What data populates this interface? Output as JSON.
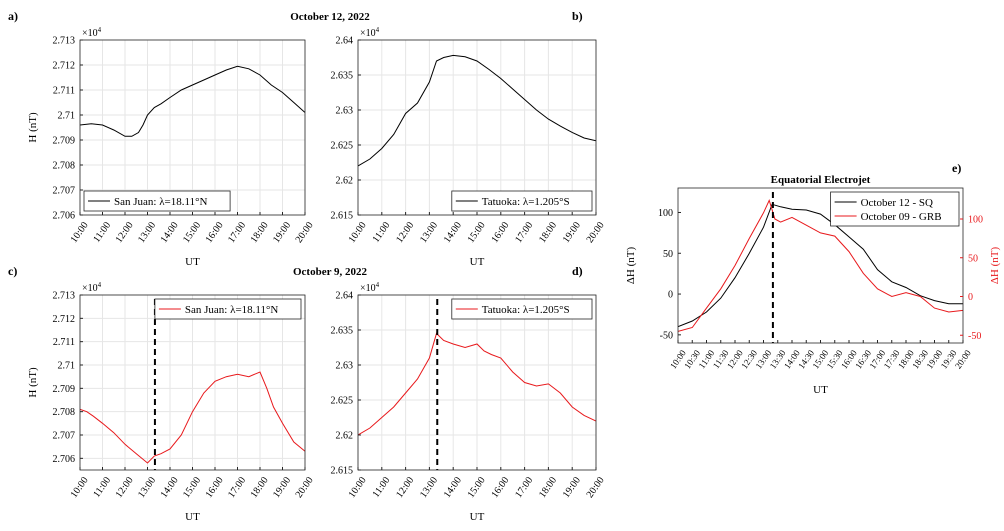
{
  "figure_titles": {
    "top": "October 12, 2022",
    "bottom": "October 9, 2022"
  },
  "colors": {
    "black": "#000000",
    "red": "#e8191c",
    "grid": "#e6e6e6",
    "axis": "#262626"
  },
  "chart_data": [
    {
      "id": "a",
      "panel_label": "a)",
      "type": "line",
      "ylabel": "H (nT)",
      "xlabel": "UT",
      "exponent": "×10",
      "exponent_power": "4",
      "x_ticks": [
        "10:00",
        "11:00",
        "12:00",
        "13:00",
        "14:00",
        "15:00",
        "16:00",
        "17:00",
        "18:00",
        "19:00",
        "20:00"
      ],
      "xlim": [
        10,
        20
      ],
      "ylim": [
        27060,
        27130
      ],
      "y_ticks": [
        27060,
        27070,
        27080,
        27090,
        27100,
        27110,
        27120,
        27130
      ],
      "y_tick_labels": [
        "2.706",
        "2.707",
        "2.708",
        "2.709",
        "2.71",
        "2.711",
        "2.712",
        "2.713"
      ],
      "grid": true,
      "legend_position": "bottom-left",
      "series": [
        {
          "name": "San Juan: λ=18.11°N",
          "color": "black",
          "x": [
            10,
            10.5,
            11,
            11.5,
            12,
            12.3,
            12.6,
            12.8,
            13,
            13.3,
            13.6,
            14,
            14.5,
            15,
            15.5,
            16,
            16.5,
            17,
            17.5,
            18,
            18.5,
            19,
            19.5,
            20
          ],
          "y": [
            27096,
            27096.5,
            27096,
            27094,
            27091.5,
            27091.5,
            27093,
            27096,
            27100,
            27103,
            27104.5,
            27107,
            27110,
            27112,
            27114,
            27116,
            27118,
            27119.5,
            27118.5,
            27116,
            27112,
            27109,
            27105,
            27101
          ]
        }
      ]
    },
    {
      "id": "b",
      "panel_label": "b)",
      "type": "line",
      "ylabel": "",
      "xlabel": "UT",
      "exponent": "×10",
      "exponent_power": "4",
      "x_ticks": [
        "10:00",
        "11:00",
        "12:00",
        "13:00",
        "14:00",
        "15:00",
        "16:00",
        "17:00",
        "18:00",
        "19:00",
        "20:00"
      ],
      "xlim": [
        10,
        20
      ],
      "ylim": [
        26150,
        26400
      ],
      "y_ticks": [
        26150,
        26200,
        26250,
        26300,
        26350,
        26400
      ],
      "y_tick_labels": [
        "2.615",
        "2.62",
        "2.625",
        "2.63",
        "2.635",
        "2.64"
      ],
      "grid": true,
      "legend_position": "bottom-right",
      "series": [
        {
          "name": "Tatuoka: λ=1.205°S",
          "color": "black",
          "x": [
            10,
            10.5,
            11,
            11.5,
            12,
            12.5,
            13,
            13.3,
            13.6,
            14,
            14.5,
            15,
            15.5,
            16,
            16.5,
            17,
            17.5,
            18,
            18.5,
            19,
            19.5,
            20
          ],
          "y": [
            26220,
            26230,
            26245,
            26265,
            26295,
            26310,
            26340,
            26370,
            26375,
            26378,
            26376,
            26370,
            26358,
            26345,
            26330,
            26315,
            26300,
            26287,
            26277,
            26268,
            26260,
            26256
          ]
        }
      ]
    },
    {
      "id": "c",
      "panel_label": "c)",
      "type": "line",
      "ylabel": "H (nT)",
      "xlabel": "UT",
      "exponent": "×10",
      "exponent_power": "4",
      "x_ticks": [
        "10:00",
        "11:00",
        "12:00",
        "13:00",
        "14:00",
        "15:00",
        "16:00",
        "17:00",
        "18:00",
        "19:00",
        "20:00"
      ],
      "xlim": [
        10,
        20
      ],
      "ylim": [
        27055,
        27130
      ],
      "y_ticks": [
        27060,
        27070,
        27080,
        27090,
        27100,
        27110,
        27120,
        27130
      ],
      "y_tick_labels": [
        "2.706",
        "2.707",
        "2.708",
        "2.709",
        "2.71",
        "2.711",
        "2.712",
        "2.713"
      ],
      "grid": true,
      "legend_position": "top-right",
      "marker_time": 13.33,
      "series": [
        {
          "name": "San Juan: λ=18.11°N",
          "color": "red",
          "x": [
            10,
            10.3,
            10.6,
            11,
            11.5,
            12,
            12.5,
            13,
            13.3,
            13.6,
            14,
            14.5,
            15,
            15.5,
            16,
            16.5,
            17,
            17.5,
            18,
            18.3,
            18.6,
            19,
            19.5,
            20
          ],
          "y": [
            27081,
            27080,
            27078,
            27075,
            27071,
            27066,
            27062,
            27058,
            27061,
            27062,
            27064,
            27070,
            27080,
            27088,
            27093,
            27095,
            27096,
            27095,
            27097,
            27090,
            27082,
            27075,
            27067,
            27063
          ]
        }
      ]
    },
    {
      "id": "d",
      "panel_label": "d)",
      "type": "line",
      "ylabel": "",
      "xlabel": "UT",
      "exponent": "×10",
      "exponent_power": "4",
      "x_ticks": [
        "10:00",
        "11:00",
        "12:00",
        "13:00",
        "14:00",
        "15:00",
        "16:00",
        "17:00",
        "18:00",
        "19:00",
        "20:00"
      ],
      "xlim": [
        10,
        20
      ],
      "ylim": [
        26150,
        26400
      ],
      "y_ticks": [
        26150,
        26200,
        26250,
        26300,
        26350,
        26400
      ],
      "y_tick_labels": [
        "2.615",
        "2.62",
        "2.625",
        "2.63",
        "2.635",
        "2.64"
      ],
      "grid": true,
      "legend_position": "top-right",
      "marker_time": 13.33,
      "series": [
        {
          "name": "Tatuoka: λ=1.205°S",
          "color": "red",
          "x": [
            10,
            10.5,
            11,
            11.5,
            12,
            12.5,
            13,
            13.3,
            13.6,
            14,
            14.5,
            15,
            15.3,
            15.6,
            16,
            16.5,
            17,
            17.5,
            18,
            18.5,
            19,
            19.5,
            20
          ],
          "y": [
            26200,
            26210,
            26225,
            26240,
            26260,
            26280,
            26310,
            26345,
            26335,
            26330,
            26325,
            26330,
            26320,
            26315,
            26310,
            26290,
            26275,
            26270,
            26273,
            26260,
            26240,
            26228,
            26220
          ]
        }
      ]
    },
    {
      "id": "e",
      "panel_label": "e)",
      "type": "line",
      "title": "Equatorial Electrojet",
      "ylabel": "ΔH (nT)",
      "ylabel_right": "ΔH (nT)",
      "xlabel": "UT",
      "x_ticks": [
        "10:00",
        "10:30",
        "11:00",
        "11:30",
        "12:00",
        "12:30",
        "13:00",
        "13:30",
        "14:00",
        "14:30",
        "15:00",
        "15:30",
        "16:00",
        "16:30",
        "17:00",
        "17:30",
        "18:00",
        "18:30",
        "19:00",
        "19:30",
        "20:00"
      ],
      "xlim": [
        10,
        20
      ],
      "ylim": [
        -60,
        130
      ],
      "y_ticks": [
        -50,
        0,
        50,
        100
      ],
      "y_tick_labels": [
        "-50",
        "0",
        "50",
        "100"
      ],
      "ylim_right": [
        -60,
        140
      ],
      "y_ticks_right": [
        -50,
        0,
        50,
        100
      ],
      "y_tick_labels_right": [
        "-50",
        "0",
        "50",
        "100"
      ],
      "grid": false,
      "legend_position": "top-right",
      "marker_time": 13.33,
      "series": [
        {
          "name": "October 12 - SQ",
          "color": "black",
          "axis": "left",
          "x": [
            10,
            10.5,
            11,
            11.5,
            12,
            12.5,
            13,
            13.3,
            13.6,
            14,
            14.5,
            15,
            15.5,
            16,
            16.5,
            17,
            17.5,
            18,
            18.5,
            19,
            19.5,
            20
          ],
          "y": [
            -40,
            -33,
            -22,
            -5,
            20,
            50,
            82,
            110,
            107,
            104,
            103,
            98,
            85,
            70,
            55,
            30,
            15,
            8,
            -2,
            -8,
            -12,
            -12
          ]
        },
        {
          "name": "October 09 - GRB",
          "color": "red",
          "axis": "right",
          "x": [
            10,
            10.5,
            11,
            11.5,
            12,
            12.5,
            13,
            13.2,
            13.4,
            13.6,
            14,
            14.5,
            15,
            15.5,
            16,
            16.5,
            17,
            17.5,
            18,
            18.5,
            19,
            19.5,
            20
          ],
          "y": [
            -45,
            -40,
            -15,
            10,
            40,
            75,
            108,
            124,
            100,
            96,
            102,
            92,
            82,
            78,
            58,
            30,
            10,
            0,
            5,
            0,
            -15,
            -20,
            -18
          ]
        }
      ]
    }
  ]
}
